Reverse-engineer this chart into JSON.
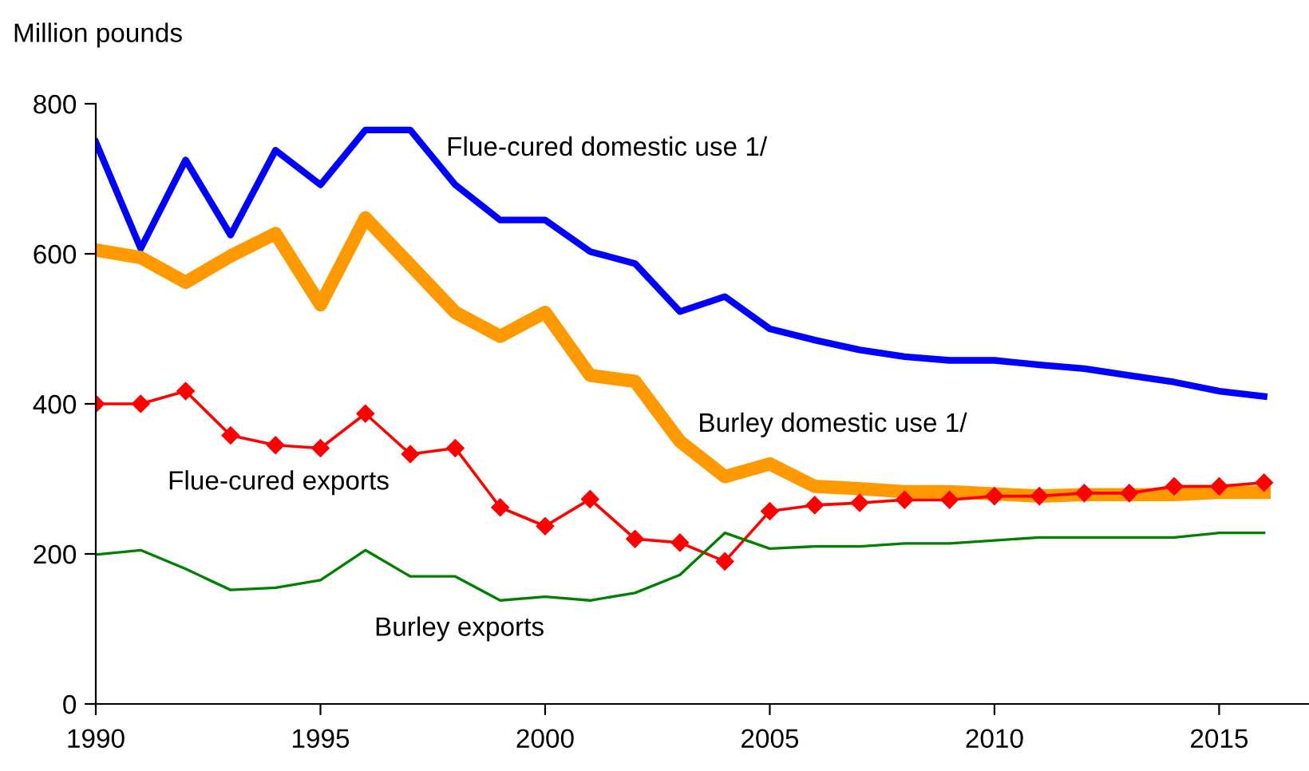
{
  "chart_data": {
    "type": "line",
    "ylabel": "Million pounds",
    "x": [
      1990,
      1991,
      1992,
      1993,
      1994,
      1995,
      1996,
      1997,
      1998,
      1999,
      2000,
      2001,
      2002,
      2003,
      2004,
      2005,
      2006,
      2007,
      2008,
      2009,
      2010,
      2011,
      2012,
      2013,
      2014,
      2015,
      2016
    ],
    "series": [
      {
        "name": "Flue-cured domestic use 1/",
        "color": "#0000ff",
        "values": [
          749,
          607,
          725,
          625,
          738,
          692,
          765,
          765,
          692,
          645,
          645,
          603,
          587,
          523,
          543,
          500,
          485,
          472,
          463,
          458,
          458,
          452,
          447,
          438,
          429,
          417,
          410
        ]
      },
      {
        "name": "Burley domestic use 1/",
        "color": "#ff9900",
        "values": [
          605,
          595,
          562,
          597,
          627,
          532,
          648,
          585,
          522,
          490,
          522,
          438,
          430,
          350,
          303,
          320,
          290,
          287,
          283,
          283,
          280,
          277,
          279,
          279,
          279,
          282,
          282
        ]
      },
      {
        "name": "Flue-cured exports",
        "color": "#ff0000",
        "marker": "diamond",
        "values": [
          400,
          400,
          417,
          358,
          345,
          341,
          387,
          333,
          341,
          262,
          237,
          273,
          220,
          215,
          190,
          257,
          265,
          268,
          272,
          272,
          277,
          277,
          281,
          281,
          290,
          290,
          295
        ]
      },
      {
        "name": "Burley exports",
        "color": "#008000",
        "values": [
          199,
          205,
          180,
          152,
          155,
          165,
          205,
          170,
          170,
          138,
          143,
          138,
          148,
          172,
          228,
          207,
          210,
          210,
          214,
          214,
          218,
          222,
          222,
          222,
          222,
          228,
          228
        ]
      }
    ],
    "xlim": [
      1990,
      2017
    ],
    "xticks": [
      1990,
      1995,
      2000,
      2005,
      2010,
      2015
    ],
    "ylim": [
      0,
      800
    ],
    "yticks": [
      0,
      200,
      400,
      600,
      800
    ],
    "grid": false,
    "legend": false,
    "marker": "none",
    "line_style": "solid"
  }
}
